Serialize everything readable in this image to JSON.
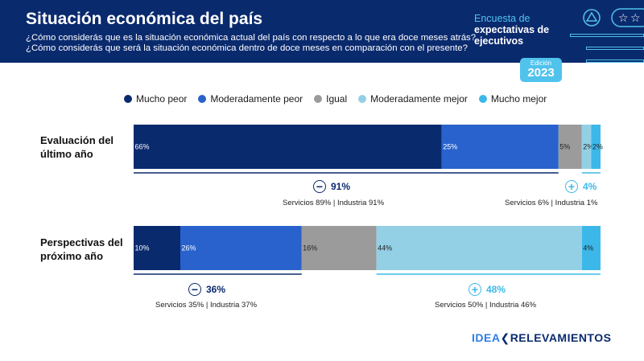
{
  "header": {
    "title": "Situación económica del país",
    "subtitle_1": "¿Cómo considerás que es la situación económica actual del país con respecto a lo que era doce meses atrás?",
    "subtitle_2": "¿Cómo considerás que será la situación económica dentro de doce meses en comparación con el presente?"
  },
  "survey": {
    "line1": "Encuesta de",
    "line2": "expectativas de",
    "line3": "ejecutivos"
  },
  "edition": {
    "label": "Edición",
    "year": "2023"
  },
  "colors": {
    "header_bg": "#0a2a6e",
    "mucho_peor": "#0a2a6e",
    "moderadamente_peor": "#2962cc",
    "igual": "#9b9b9b",
    "moderadamente_mejor": "#93d0e6",
    "mucho_mejor": "#3cb8e8"
  },
  "chart_data": {
    "type": "bar",
    "orientation": "horizontal-stacked-100",
    "categories": [
      "Evaluación del último año",
      "Perspectivas del próximo año"
    ],
    "series": [
      {
        "name": "Mucho peor",
        "values": [
          66,
          10
        ],
        "labels": [
          "66%",
          "10%"
        ]
      },
      {
        "name": "Moderadamente peor",
        "values": [
          25,
          26
        ],
        "labels": [
          "25%",
          "26%"
        ]
      },
      {
        "name": "Igual",
        "values": [
          5,
          16
        ],
        "labels": [
          "5%",
          "16%"
        ]
      },
      {
        "name": "Moderadamente mejor",
        "values": [
          2,
          44
        ],
        "labels": [
          "2%",
          "44%"
        ]
      },
      {
        "name": "Mucho mejor",
        "values": [
          2,
          4
        ],
        "labels": [
          "2%",
          "4%"
        ]
      }
    ],
    "xlim": [
      0,
      100
    ]
  },
  "legend": [
    "Mucho peor",
    "Moderadamente peor",
    "Igual",
    "Moderadamente mejor",
    "Mucho mejor"
  ],
  "rows": [
    {
      "label_line1": "Evaluación del",
      "label_line2": "último año",
      "negative": {
        "icon": "−",
        "value": "91%",
        "detail": "Servicios 89% | Industria 91%"
      },
      "positive": {
        "icon": "+",
        "value": "4%",
        "detail": "Servicios 6% | Industria 1%"
      }
    },
    {
      "label_line1": "Perspectivas del",
      "label_line2": "próximo año",
      "negative": {
        "icon": "−",
        "value": "36%",
        "detail": "Servicios 35% | Industria 37%"
      },
      "positive": {
        "icon": "+",
        "value": "48%",
        "detail": "Servicios 50% | Industria 46%"
      }
    }
  ],
  "brand": {
    "part1": "IDEA",
    "part2": "RELEVAMIENTOS"
  }
}
